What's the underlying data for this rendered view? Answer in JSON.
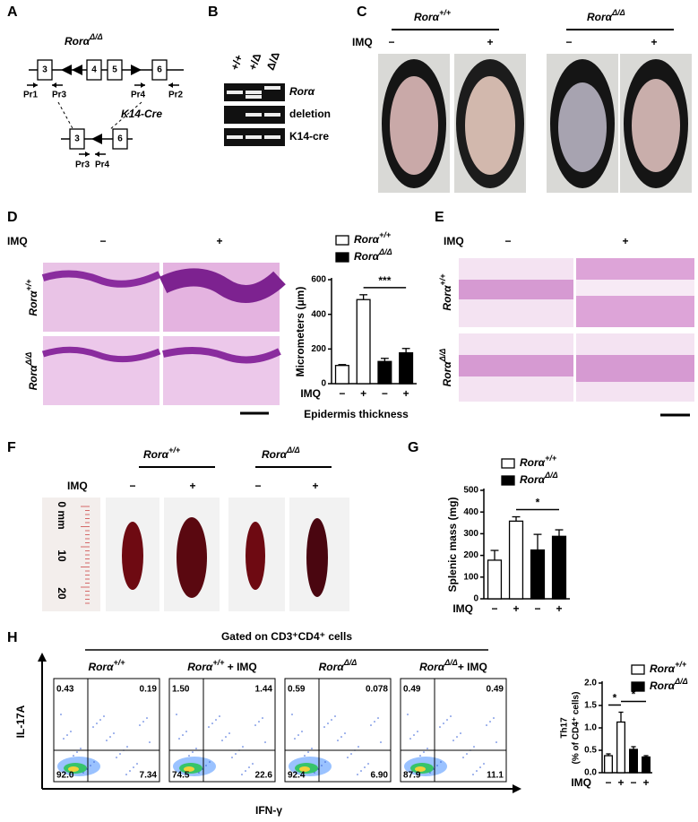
{
  "panel_labels": [
    "A",
    "B",
    "C",
    "D",
    "E",
    "F",
    "G",
    "H"
  ],
  "genotypes": {
    "wt": {
      "base": "Rorα",
      "sup": "+/+"
    },
    "ko": {
      "base": "Rorα",
      "sup": "Δ/Δ"
    }
  },
  "treatment": {
    "name": "IMQ",
    "minus": "−",
    "plus": "+"
  },
  "panel_a": {
    "exons_top": [
      "3",
      "4",
      "5",
      "6"
    ],
    "primers_top": [
      "Pr1",
      "Pr3",
      "Pr4",
      "Pr2"
    ],
    "recombinase": "K14-Cre",
    "exons_bottom": [
      "3",
      "6"
    ],
    "primers_bottom": [
      "Pr3",
      "Pr4"
    ]
  },
  "panel_b": {
    "lanes": [
      "+/+",
      "+/Δ",
      "Δ/Δ"
    ],
    "bands": [
      "Rorα",
      "deletion",
      "K14-cre"
    ]
  },
  "panel_f": {
    "ruler": [
      "0 mm",
      "10",
      "20"
    ]
  },
  "panel_h": {
    "gate": "Gated on CD3⁺CD4⁺ cells",
    "y_axis": "IL-17A",
    "x_axis": "IFN-γ",
    "plots": [
      {
        "title": {
          "base": "Rorα",
          "sup": "+/+"
        },
        "quadrants": [
          "0.43",
          "0.19",
          "92.0",
          "7.34"
        ]
      },
      {
        "title": {
          "base": "Rorα",
          "sup": "+/+",
          "suffix": " + IMQ"
        },
        "quadrants": [
          "1.50",
          "1.44",
          "74.5",
          "22.6"
        ]
      },
      {
        "title": {
          "base": "Rorα",
          "sup": "Δ/Δ"
        },
        "quadrants": [
          "0.59",
          "0.078",
          "92.4",
          "6.90"
        ]
      },
      {
        "title": {
          "base": "Rorα",
          "sup": "Δ/Δ",
          "suffix": "+ IMQ"
        },
        "quadrants": [
          "0.49",
          "0.49",
          "87.9",
          "11.1"
        ]
      }
    ]
  },
  "chart_data": [
    {
      "type": "bar",
      "y_label": "Micrometers (μm)",
      "x_label": "Epidermis thickness",
      "category_title": "IMQ",
      "categories": [
        "−",
        "+",
        "−",
        "+"
      ],
      "series": [
        {
          "name": "Rorα",
          "name_sup": "+/+",
          "color": "#ffffff",
          "values": [
            105,
            485,
            null,
            null
          ],
          "errors": [
            5,
            28,
            null,
            null
          ]
        },
        {
          "name": "Rorα",
          "name_sup": "Δ/Δ",
          "color": "#000000",
          "values": [
            null,
            null,
            128,
            178
          ],
          "errors": [
            null,
            null,
            18,
            25
          ]
        }
      ],
      "ylim": [
        0,
        600
      ],
      "yticks": [
        0,
        200,
        400,
        600
      ],
      "annotations": [
        "***"
      ]
    },
    {
      "type": "bar",
      "y_label": "Splenic mass (mg)",
      "category_title": "IMQ",
      "categories": [
        "−",
        "+",
        "−",
        "+"
      ],
      "series": [
        {
          "name": "Rorα",
          "name_sup": "+/+",
          "color": "#ffffff",
          "values": [
            178,
            358,
            null,
            null
          ],
          "errors": [
            45,
            20,
            null,
            null
          ]
        },
        {
          "name": "Rorα",
          "name_sup": "Δ/Δ",
          "color": "#000000",
          "values": [
            null,
            null,
            225,
            288
          ],
          "errors": [
            null,
            null,
            72,
            30
          ]
        }
      ],
      "ylim": [
        0,
        500
      ],
      "yticks": [
        0,
        100,
        200,
        300,
        400,
        500
      ],
      "annotations": [
        "*"
      ]
    },
    {
      "type": "bar",
      "y_label": [
        "Th17",
        "(% of CD4⁺ cells)"
      ],
      "category_title": "IMQ",
      "categories": [
        "−",
        "+",
        "−",
        "+"
      ],
      "series": [
        {
          "name": "Rorα",
          "name_sup": "+/+",
          "color": "#ffffff",
          "values": [
            0.38,
            1.13,
            null,
            null
          ],
          "errors": [
            0.04,
            0.22,
            null,
            null
          ]
        },
        {
          "name": "Rorα",
          "name_sup": "Δ/Δ",
          "color": "#000000",
          "values": [
            null,
            null,
            0.52,
            0.35
          ],
          "errors": [
            null,
            null,
            0.06,
            0.03
          ]
        }
      ],
      "ylim": [
        0,
        2
      ],
      "yticks": [
        {
          "value": 0,
          "label": "0.0"
        },
        {
          "value": 0.5,
          "label": "0.5"
        },
        {
          "value": 1,
          "label": "1.0"
        },
        {
          "value": 1.5,
          "label": "1.5"
        },
        {
          "value": 2,
          "label": "2.0"
        }
      ],
      "annotations": [
        "*",
        "*"
      ]
    }
  ]
}
